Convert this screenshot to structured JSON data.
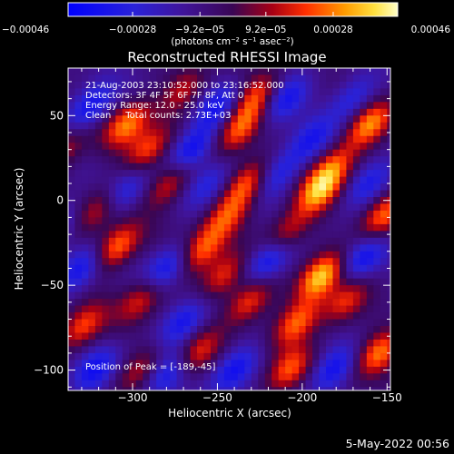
{
  "chart_data": {
    "type": "heatmap",
    "title": "Reconstructed RHESSI Image",
    "xlabel": "Heliocentric X (arcsec)",
    "ylabel": "Heliocentric Y (arcsec)",
    "xlim": [
      -338,
      -148
    ],
    "ylim": [
      -112,
      78
    ],
    "x_ticks": [
      -300,
      -250,
      -200,
      -150
    ],
    "x_tick_labels": [
      "−300",
      "−250",
      "−200",
      "−150"
    ],
    "y_ticks": [
      50,
      0,
      -50,
      -100
    ],
    "y_tick_labels": [
      "50",
      "0",
      "−50",
      "−100"
    ],
    "colorbar": {
      "min": -0.00046,
      "max": 0.00046,
      "ticks": [
        -0.00046,
        -0.00028,
        -9.2e-05,
        9.2e-05,
        0.00028,
        0.00046
      ],
      "tick_labels": [
        "−0.00046",
        "−0.00028",
        "−9.2e−05",
        "9.2e−05",
        "0.00028",
        "0.00046"
      ],
      "units": "(photons cm⁻² s⁻¹ asec⁻²)"
    },
    "annotations": [
      "21-Aug-2003 23:10:52.000 to 23:16:52.000",
      "Detectors: 3F 4F 5F 6F 7F 8F, Att 0",
      "Energy Range: 12.0 - 25.0 keV",
      "Clean     Total counts: 2.73E+03"
    ],
    "peak_label": "Position of Peak = [-189,-45]",
    "bright_sources": [
      {
        "x": -303,
        "y": 45,
        "v": 0.00036
      },
      {
        "x": -291,
        "y": 30,
        "v": 0.0003
      },
      {
        "x": -278,
        "y": 10,
        "v": 0.00028
      },
      {
        "x": -320,
        "y": -5,
        "v": 0.00025
      },
      {
        "x": -310,
        "y": -28,
        "v": 0.00038
      },
      {
        "x": -295,
        "y": -58,
        "v": 0.00028
      },
      {
        "x": -330,
        "y": -75,
        "v": 0.0003
      },
      {
        "x": -295,
        "y": -100,
        "v": 0.00022
      },
      {
        "x": -260,
        "y": -30,
        "v": 0.00032
      },
      {
        "x": -247,
        "y": -45,
        "v": 0.00028
      },
      {
        "x": -232,
        "y": -60,
        "v": 0.0003
      },
      {
        "x": -237,
        "y": 42,
        "v": 0.00034
      },
      {
        "x": -228,
        "y": 60,
        "v": 0.0003
      },
      {
        "x": -232,
        "y": 10,
        "v": 0.00034
      },
      {
        "x": -245,
        "y": -10,
        "v": 0.00028
      },
      {
        "x": -210,
        "y": -20,
        "v": 0.00028
      },
      {
        "x": -189,
        "y": -45,
        "v": 0.00046
      },
      {
        "x": -203,
        "y": -72,
        "v": 0.00034
      },
      {
        "x": -208,
        "y": -100,
        "v": 0.0003
      },
      {
        "x": -190,
        "y": 5,
        "v": 0.00038
      },
      {
        "x": -182,
        "y": 20,
        "v": 0.0003
      },
      {
        "x": -160,
        "y": 45,
        "v": 0.00038
      },
      {
        "x": -153,
        "y": -10,
        "v": 0.00034
      },
      {
        "x": -155,
        "y": -90,
        "v": 0.00036
      },
      {
        "x": -175,
        "y": -60,
        "v": 0.00026
      },
      {
        "x": -270,
        "y": 65,
        "v": 0.00022
      },
      {
        "x": -340,
        "y": 30,
        "v": 0.00022
      },
      {
        "x": -262,
        "y": -90,
        "v": 0.00026
      }
    ],
    "dark_sources": [
      {
        "x": -325,
        "y": 55,
        "v": -0.00032
      },
      {
        "x": -305,
        "y": 5,
        "v": -0.00026
      },
      {
        "x": -330,
        "y": -40,
        "v": -0.0003
      },
      {
        "x": -322,
        "y": -100,
        "v": -0.00028
      },
      {
        "x": -280,
        "y": -40,
        "v": -0.00032
      },
      {
        "x": -270,
        "y": -72,
        "v": -0.0003
      },
      {
        "x": -265,
        "y": 30,
        "v": -0.00034
      },
      {
        "x": -255,
        "y": 10,
        "v": -0.00022
      },
      {
        "x": -280,
        "y": -102,
        "v": -0.00026
      },
      {
        "x": -210,
        "y": 60,
        "v": -0.0003
      },
      {
        "x": -215,
        "y": 15,
        "v": -0.00026
      },
      {
        "x": -220,
        "y": -35,
        "v": -0.00036
      },
      {
        "x": -240,
        "y": -100,
        "v": -0.0003
      },
      {
        "x": -182,
        "y": -100,
        "v": -0.0003
      },
      {
        "x": -165,
        "y": -35,
        "v": -0.0003
      },
      {
        "x": -170,
        "y": 60,
        "v": -0.00024
      },
      {
        "x": -160,
        "y": 10,
        "v": -0.00026
      },
      {
        "x": -195,
        "y": 35,
        "v": -0.00024
      },
      {
        "x": -345,
        "y": -15,
        "v": -0.00022
      },
      {
        "x": -250,
        "y": 55,
        "v": -0.00026
      }
    ]
  },
  "footer": {
    "date": "5-May-2022 00:56"
  }
}
